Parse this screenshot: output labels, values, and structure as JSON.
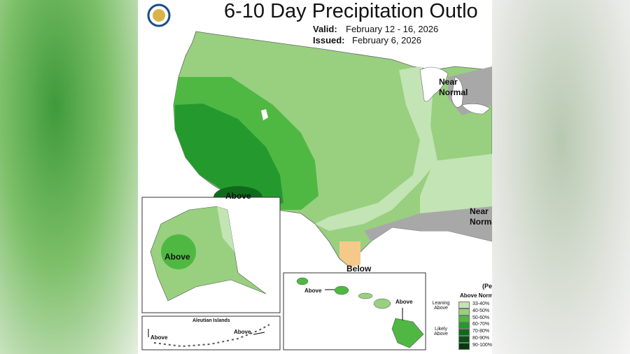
{
  "header": {
    "title": "6-10 Day Precipitation Outlo",
    "valid_label": "Valid:",
    "valid_dates": "February 12 - 16, 2026",
    "issued_label": "Issued:",
    "issued_date": "February 6, 2026"
  },
  "map_labels": {
    "near_normal_north": "Near Normal",
    "above_southwest": "Above",
    "near_normal_east": "Near Norma",
    "below_texas": "Below"
  },
  "insets": {
    "alaska_label": "Above",
    "aleutian_title": "Aleutian Islands",
    "aleutian_labels": [
      "Above",
      "Above"
    ],
    "hawaii_labels": [
      "Above",
      "Above"
    ]
  },
  "legend": {
    "title": "(Pe",
    "subtitle": "Above Norm",
    "groups": [
      {
        "label": "Leaning Above",
        "items": [
          "33-40%",
          "40-50%"
        ]
      },
      {
        "label": "Likely Above",
        "items": [
          "50-60%",
          "60-70%",
          "70-80%",
          "80-90%",
          "90-100%"
        ]
      }
    ]
  }
}
